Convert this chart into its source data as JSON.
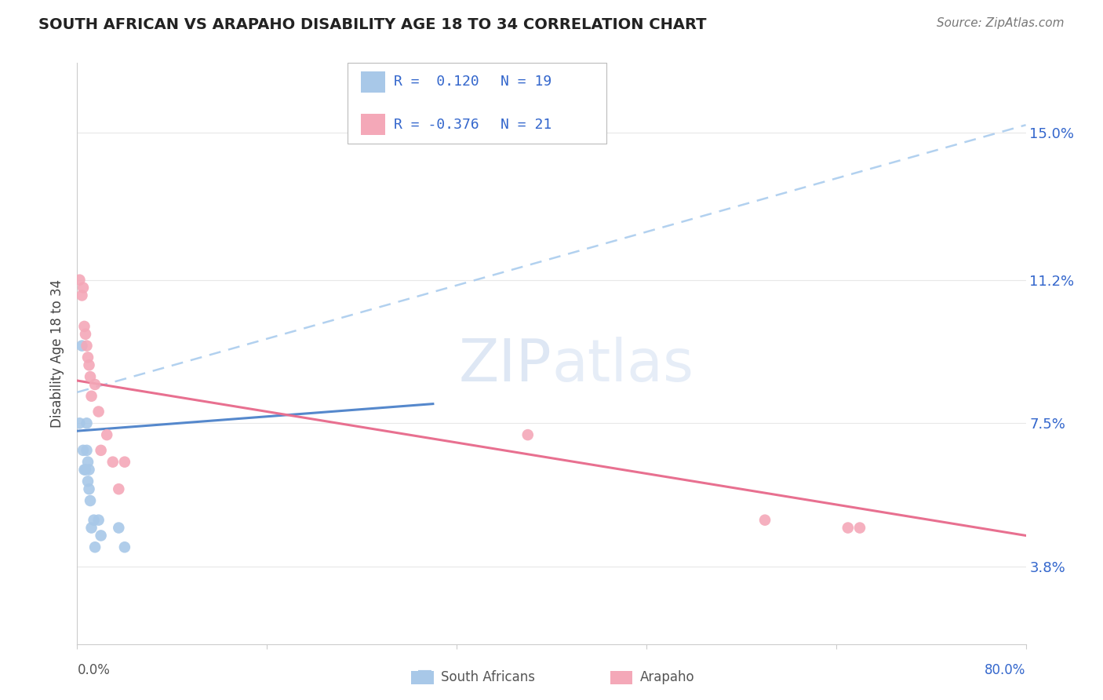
{
  "title": "SOUTH AFRICAN VS ARAPAHO DISABILITY AGE 18 TO 34 CORRELATION CHART",
  "source": "Source: ZipAtlas.com",
  "ylabel": "Disability Age 18 to 34",
  "ytick_labels": [
    "3.8%",
    "7.5%",
    "11.2%",
    "15.0%"
  ],
  "ytick_values": [
    0.038,
    0.075,
    0.112,
    0.15
  ],
  "xlim": [
    0.0,
    0.8
  ],
  "ylim": [
    0.018,
    0.168
  ],
  "south_african_x": [
    0.002,
    0.004,
    0.005,
    0.006,
    0.007,
    0.008,
    0.008,
    0.009,
    0.009,
    0.01,
    0.01,
    0.011,
    0.012,
    0.014,
    0.015,
    0.018,
    0.02,
    0.035,
    0.04
  ],
  "south_african_y": [
    0.075,
    0.095,
    0.068,
    0.063,
    0.063,
    0.075,
    0.068,
    0.065,
    0.06,
    0.058,
    0.063,
    0.055,
    0.048,
    0.05,
    0.043,
    0.05,
    0.046,
    0.048,
    0.043
  ],
  "arapaho_x": [
    0.002,
    0.004,
    0.005,
    0.006,
    0.007,
    0.008,
    0.009,
    0.01,
    0.011,
    0.012,
    0.015,
    0.018,
    0.02,
    0.025,
    0.03,
    0.035,
    0.04,
    0.38,
    0.58,
    0.65,
    0.66
  ],
  "arapaho_y": [
    0.112,
    0.108,
    0.11,
    0.1,
    0.098,
    0.095,
    0.092,
    0.09,
    0.087,
    0.082,
    0.085,
    0.078,
    0.068,
    0.072,
    0.065,
    0.058,
    0.065,
    0.072,
    0.05,
    0.048,
    0.048
  ],
  "sa_color": "#A8C8E8",
  "arapaho_color": "#F4A8B8",
  "sa_line_color": "#5588CC",
  "arapaho_line_color": "#E87090",
  "dashed_line_color": "#AACCEE",
  "background_color": "#FFFFFF",
  "grid_color": "#E8E8E8",
  "sa_line_x": [
    0.0,
    0.3
  ],
  "sa_line_y_start": 0.073,
  "sa_line_y_end": 0.08,
  "ar_line_x": [
    0.0,
    0.8
  ],
  "ar_line_y_start": 0.086,
  "ar_line_y_end": 0.046,
  "dash_line_x": [
    0.0,
    0.8
  ],
  "dash_line_y_start": 0.083,
  "dash_line_y_end": 0.152,
  "legend_r1": "R =  0.120",
  "legend_n1": "N = 19",
  "legend_r2": "R = -0.376",
  "legend_n2": "N = 21"
}
